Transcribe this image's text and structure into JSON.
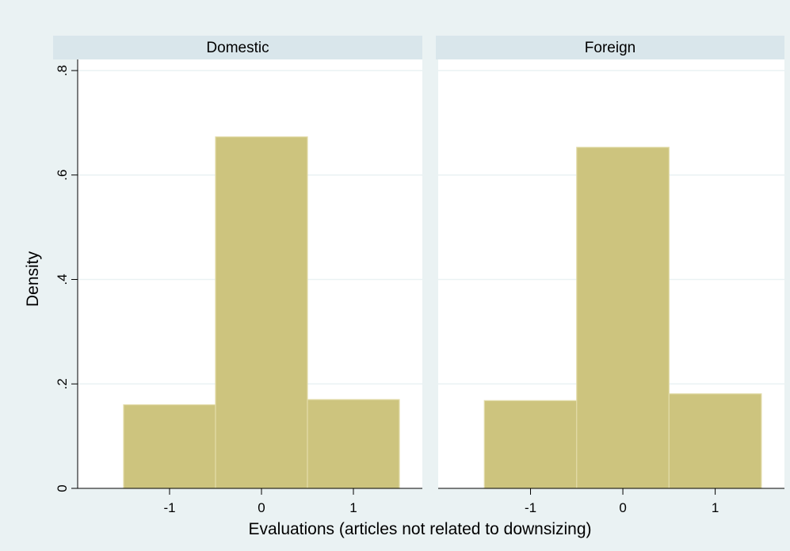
{
  "chart_data": {
    "type": "bar",
    "subtype": "histogram",
    "ylabel": "Density",
    "xlabel": "Evaluations (articles not related to downsizing)",
    "ylim": [
      0,
      0.8
    ],
    "yticks": [
      0,
      0.2,
      0.4,
      0.6,
      0.8
    ],
    "ytick_labels": [
      "0",
      ".2",
      ".4",
      ".6",
      ".8"
    ],
    "xlim": [
      -2,
      1.75
    ],
    "xticks": [
      -1,
      0,
      1
    ],
    "xtick_labels": [
      "-1",
      "0",
      "1"
    ],
    "bin_width": 1,
    "grid": true,
    "colors": {
      "background": "#eaf2f3",
      "plot": "#ffffff",
      "strip": "#d9e6eb",
      "bar": "#cdc47e",
      "bar_edge": "#e2dba8",
      "grid": "#eaf2f3",
      "axis": "#000000"
    },
    "panels": [
      {
        "title": "Domestic",
        "categories": [
          "-1",
          "0",
          "1"
        ],
        "x": [
          -1,
          0,
          1
        ],
        "values": [
          0.16,
          0.673,
          0.17
        ]
      },
      {
        "title": "Foreign",
        "categories": [
          "-1",
          "0",
          "1"
        ],
        "x": [
          -1,
          0,
          1
        ],
        "values": [
          0.168,
          0.653,
          0.181
        ]
      }
    ]
  }
}
